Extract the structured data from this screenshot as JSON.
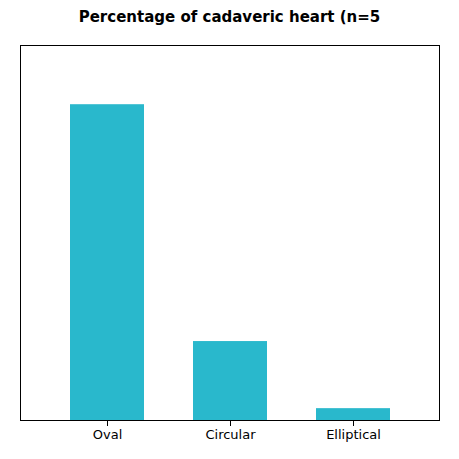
{
  "chart_data": {
    "type": "bar",
    "title": "Percentage of cadaveric heart (n=5",
    "categories": [
      "Oval",
      "Circular",
      "Elliptical"
    ],
    "values": [
      80,
      20,
      3
    ],
    "color": "#29B8CC",
    "ylim": [
      0,
      95
    ],
    "yticks": [],
    "grid": false,
    "tick_labels": "x"
  }
}
